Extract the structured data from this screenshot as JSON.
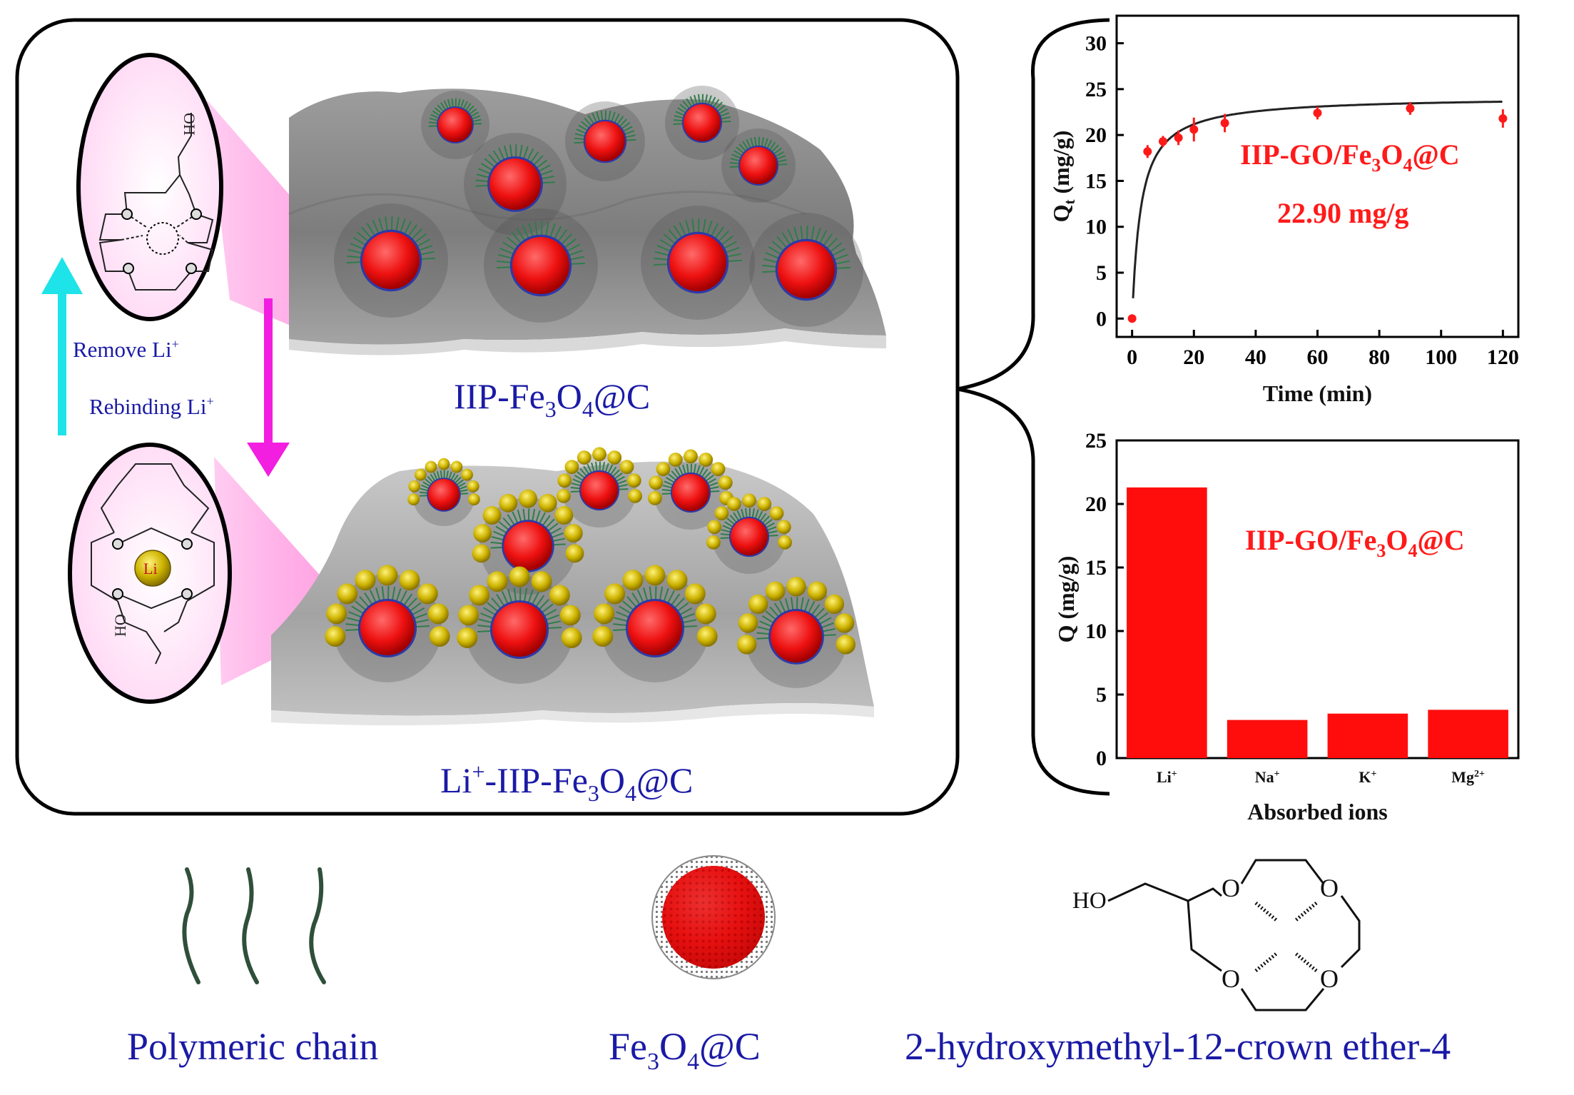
{
  "labels": {
    "remove": "Remove Li",
    "remove_sup": "+",
    "rebind": "Rebinding Li",
    "rebind_sup": "+",
    "li_atom": "Li",
    "oh": "OH",
    "ho_bottom": "HO",
    "ho_legend": "HO",
    "o": "O",
    "top_surface": {
      "a": "IIP-Fe",
      "s1": "3",
      "b": "O",
      "s2": "4",
      "c": "@C"
    },
    "bottom_surface": {
      "a": "Li",
      "sup": "+",
      "b": "-IIP-Fe",
      "s1": "3",
      "c": "O",
      "s2": "4",
      "d": "@C"
    },
    "legend_chain": "Polymeric chain",
    "legend_particle": {
      "a": "Fe",
      "s1": "3",
      "b": "O",
      "s2": "4",
      "c": "@C"
    },
    "legend_crown": "2-hydroxymethyl-12-crown ether-4"
  },
  "colors": {
    "text_blue": "#1a1aa6",
    "red": "#ff1a1a",
    "arrow_cyan": "#1ee3e8",
    "arrow_magenta": "#f21ee0",
    "gold": "#c8b400"
  },
  "chart_data": [
    {
      "type": "scatter",
      "xlabel": "Time (min)",
      "ylabel": "Q",
      "ylabel_sub": "t",
      "ylabel_unit": " (mg/g)",
      "xlim": [
        -5,
        125
      ],
      "ylim": [
        -2,
        33
      ],
      "xticks": [
        0,
        20,
        40,
        60,
        80,
        100,
        120
      ],
      "yticks": [
        0,
        5,
        10,
        15,
        20,
        25,
        30
      ],
      "points": [
        {
          "x": 0,
          "y": 0,
          "err": 0
        },
        {
          "x": 5,
          "y": 18.2,
          "err": 0.7
        },
        {
          "x": 10,
          "y": 19.3,
          "err": 0.6
        },
        {
          "x": 15,
          "y": 19.7,
          "err": 0.8
        },
        {
          "x": 20,
          "y": 20.6,
          "err": 1.3
        },
        {
          "x": 30,
          "y": 21.3,
          "err": 1.0
        },
        {
          "x": 60,
          "y": 22.4,
          "err": 0.7
        },
        {
          "x": 90,
          "y": 22.9,
          "err": 0.7
        },
        {
          "x": 120,
          "y": 21.8,
          "err": 1.0
        }
      ],
      "fit": {
        "qe": 22.4,
        "k": 0.32
      },
      "annotation": {
        "a": "IIP-GO/Fe",
        "s1": "3",
        "b": "O",
        "s2": "4",
        "c": "@C"
      },
      "annotation_value": "22.90 mg/g",
      "grid": false
    },
    {
      "type": "bar",
      "xlabel": "Absorbed ions",
      "ylabel": "Q (mg/g)",
      "ylim": [
        0,
        25
      ],
      "yticks": [
        0,
        5,
        10,
        15,
        20,
        25
      ],
      "categories": [
        {
          "base": "Li",
          "sup": "+"
        },
        {
          "base": "Na",
          "sup": "+"
        },
        {
          "base": "K",
          "sup": "+"
        },
        {
          "base": "Mg",
          "sup": "2+"
        }
      ],
      "values": [
        21.3,
        3.0,
        3.5,
        3.8
      ],
      "annotation": {
        "a": "IIP-GO/Fe",
        "s1": "3",
        "b": "O",
        "s2": "4",
        "c": "@C"
      },
      "grid": false
    }
  ]
}
